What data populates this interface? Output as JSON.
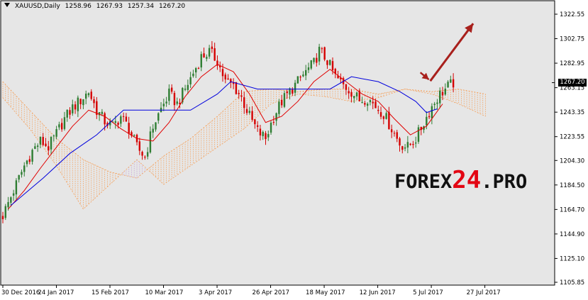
{
  "header": {
    "symbol": "XAUUSD,Daily",
    "open": "1258.96",
    "high": "1267.93",
    "low": "1257.34",
    "close": "1267.20"
  },
  "watermark": {
    "prefix": "FOREX",
    "number": "24",
    "suffix": ".PRO"
  },
  "price_tag": "1267.20",
  "colors": {
    "background": "#e6e6e6",
    "bull_candle": "#2e7d32",
    "bear_candle": "#d50000",
    "tenkan": "#e00000",
    "kijun": "#0000dd",
    "cloud_bull": "#f5a05a",
    "cloud_bear": "#c8a0d8",
    "arrow": "#a8201c"
  },
  "chart_data": {
    "type": "candlestick",
    "title": "XAUUSD,Daily",
    "y_ticks": [
      "1322.55",
      "1302.75",
      "1282.95",
      "1263.15",
      "1243.35",
      "1223.55",
      "1204.30",
      "1184.50",
      "1164.70",
      "1144.90",
      "1125.10",
      "1105.85"
    ],
    "x_ticks": [
      "30 Dec 2016",
      "24 Jan 2017",
      "15 Feb 2017",
      "10 Mar 2017",
      "3 Apr 2017",
      "26 Apr 2017",
      "18 May 2017",
      "12 Jun 2017",
      "5 Jul 2017",
      "27 Jul 2017"
    ],
    "ylim": [
      1105.85,
      1330
    ],
    "current_price": 1267.2,
    "price_path": [
      [
        0,
        1160
      ],
      [
        2,
        1170
      ],
      [
        5,
        1185
      ],
      [
        8,
        1200
      ],
      [
        11,
        1212
      ],
      [
        14,
        1220
      ],
      [
        17,
        1215
      ],
      [
        20,
        1226
      ],
      [
        23,
        1238
      ],
      [
        26,
        1247
      ],
      [
        29,
        1253
      ],
      [
        32,
        1260
      ],
      [
        35,
        1245
      ],
      [
        38,
        1236
      ],
      [
        41,
        1232
      ],
      [
        44,
        1240
      ],
      [
        47,
        1230
      ],
      [
        50,
        1215
      ],
      [
        53,
        1207
      ],
      [
        56,
        1232
      ],
      [
        59,
        1246
      ],
      [
        62,
        1258
      ],
      [
        65,
        1250
      ],
      [
        68,
        1262
      ],
      [
        71,
        1275
      ],
      [
        74,
        1288
      ],
      [
        77,
        1292
      ],
      [
        80,
        1285
      ],
      [
        83,
        1268
      ],
      [
        86,
        1265
      ],
      [
        89,
        1255
      ],
      [
        92,
        1240
      ],
      [
        95,
        1228
      ],
      [
        98,
        1222
      ],
      [
        101,
        1240
      ],
      [
        104,
        1252
      ],
      [
        107,
        1260
      ],
      [
        110,
        1268
      ],
      [
        113,
        1276
      ],
      [
        116,
        1283
      ],
      [
        118,
        1293
      ],
      [
        121,
        1285
      ],
      [
        124,
        1272
      ],
      [
        127,
        1265
      ],
      [
        130,
        1260
      ],
      [
        133,
        1253
      ],
      [
        136,
        1255
      ],
      [
        139,
        1248
      ],
      [
        142,
        1242
      ],
      [
        145,
        1230
      ],
      [
        148,
        1218
      ],
      [
        151,
        1215
      ],
      [
        154,
        1222
      ],
      [
        157,
        1235
      ],
      [
        160,
        1248
      ],
      [
        163,
        1258
      ],
      [
        166,
        1264
      ],
      [
        168,
        1267
      ]
    ],
    "tenkan": [
      [
        2,
        1165
      ],
      [
        8,
        1180
      ],
      [
        14,
        1198
      ],
      [
        20,
        1215
      ],
      [
        26,
        1232
      ],
      [
        32,
        1245
      ],
      [
        38,
        1240
      ],
      [
        44,
        1230
      ],
      [
        50,
        1222
      ],
      [
        56,
        1220
      ],
      [
        62,
        1235
      ],
      [
        68,
        1256
      ],
      [
        74,
        1272
      ],
      [
        80,
        1282
      ],
      [
        86,
        1276
      ],
      [
        92,
        1258
      ],
      [
        98,
        1235
      ],
      [
        104,
        1240
      ],
      [
        110,
        1252
      ],
      [
        116,
        1268
      ],
      [
        122,
        1278
      ],
      [
        128,
        1268
      ],
      [
        134,
        1258
      ],
      [
        140,
        1252
      ],
      [
        146,
        1238
      ],
      [
        152,
        1225
      ],
      [
        158,
        1232
      ],
      [
        164,
        1250
      ]
    ],
    "kijun": [
      [
        3,
        1168
      ],
      [
        15,
        1190
      ],
      [
        25,
        1210
      ],
      [
        35,
        1225
      ],
      [
        45,
        1245
      ],
      [
        55,
        1245
      ],
      [
        70,
        1245
      ],
      [
        80,
        1258
      ],
      [
        85,
        1268
      ],
      [
        95,
        1262
      ],
      [
        108,
        1262
      ],
      [
        122,
        1262
      ],
      [
        130,
        1272
      ],
      [
        140,
        1268
      ],
      [
        148,
        1260
      ],
      [
        154,
        1252
      ],
      [
        158,
        1243
      ],
      [
        162,
        1246
      ]
    ],
    "cloud_a": [
      [
        0,
        1268
      ],
      [
        10,
        1245
      ],
      [
        20,
        1222
      ],
      [
        30,
        1205
      ],
      [
        40,
        1195
      ],
      [
        50,
        1190
      ],
      [
        60,
        1208
      ],
      [
        70,
        1222
      ],
      [
        80,
        1240
      ],
      [
        90,
        1260
      ],
      [
        100,
        1262
      ],
      [
        110,
        1260
      ],
      [
        120,
        1262
      ],
      [
        130,
        1262
      ],
      [
        140,
        1258
      ],
      [
        150,
        1262
      ],
      [
        160,
        1260
      ],
      [
        170,
        1262
      ],
      [
        180,
        1258
      ]
    ],
    "cloud_b": [
      [
        0,
        1255
      ],
      [
        10,
        1230
      ],
      [
        20,
        1200
      ],
      [
        30,
        1165
      ],
      [
        40,
        1185
      ],
      [
        50,
        1205
      ],
      [
        60,
        1185
      ],
      [
        70,
        1200
      ],
      [
        80,
        1215
      ],
      [
        90,
        1230
      ],
      [
        100,
        1250
      ],
      [
        110,
        1258
      ],
      [
        120,
        1256
      ],
      [
        130,
        1252
      ],
      [
        140,
        1255
      ],
      [
        150,
        1262
      ],
      [
        160,
        1258
      ],
      [
        170,
        1250
      ],
      [
        180,
        1240
      ]
    ],
    "forecast_arrow": {
      "from": [
        152,
        1272
      ],
      "to": [
        168,
        1315
      ]
    }
  }
}
